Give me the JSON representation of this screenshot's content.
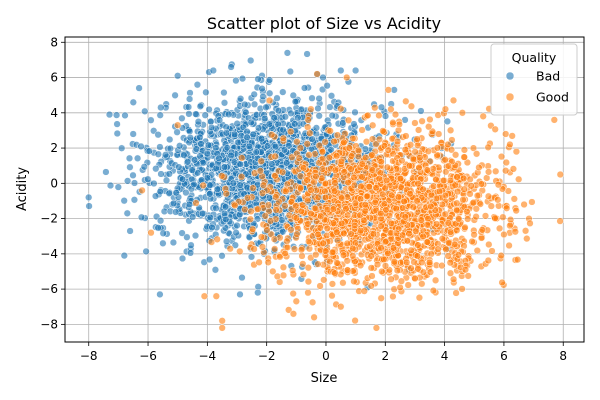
{
  "chart_data": {
    "type": "scatter",
    "title": "Scatter plot of Size vs Acidity",
    "xlabel": "Size",
    "ylabel": "Acidity",
    "xlim": [
      -8.8,
      8.7
    ],
    "ylim": [
      -9.0,
      8.3
    ],
    "xticks": [
      -8,
      -6,
      -4,
      -2,
      0,
      2,
      4,
      6,
      8
    ],
    "yticks": [
      -8,
      -6,
      -4,
      -2,
      0,
      2,
      4,
      6,
      8
    ],
    "grid": true,
    "legend": {
      "title": "Quality",
      "placement": "top-right",
      "entries": [
        "Bad",
        "Good"
      ]
    },
    "series": [
      {
        "name": "Bad",
        "color": "#1f77b4",
        "center": [
          -1.9,
          0.7
        ],
        "spread": [
          1.9,
          2.0
        ],
        "count": 2000,
        "points": [
          [
            -8.0,
            -0.8
          ],
          [
            -7.3,
            3.9
          ],
          [
            -6.8,
            -4.1
          ],
          [
            -6.7,
            -1.7
          ],
          [
            -6.5,
            2.8
          ],
          [
            -6.3,
            5.4
          ],
          [
            -5.6,
            -6.3
          ],
          [
            -5.0,
            6.1
          ],
          [
            -3.8,
            6.4
          ],
          [
            -3.2,
            6.6
          ],
          [
            -1.3,
            7.4
          ],
          [
            -0.1,
            6.0
          ],
          [
            0.5,
            6.4
          ],
          [
            1.0,
            6.4
          ],
          [
            2.3,
            5.3
          ],
          [
            3.2,
            4.1
          ],
          [
            4.1,
            -3.7
          ],
          [
            3.6,
            -2.6
          ],
          [
            2.8,
            -4.9
          ],
          [
            -2.9,
            -6.3
          ],
          [
            -2.3,
            -6.2
          ],
          [
            1.4,
            -5.9
          ],
          [
            2.2,
            4.5
          ],
          [
            3.9,
            2.0
          ],
          [
            -5.5,
            -3.4
          ]
        ]
      },
      {
        "name": "Good",
        "color": "#ff7f0e",
        "center": [
          1.9,
          -1.3
        ],
        "spread": [
          1.9,
          2.0
        ],
        "count": 2000,
        "points": [
          [
            7.9,
            0.5
          ],
          [
            7.7,
            3.6
          ],
          [
            6.2,
            2.2
          ],
          [
            6.2,
            -2.4
          ],
          [
            6.0,
            -2.9
          ],
          [
            5.3,
            3.8
          ],
          [
            4.7,
            -4.9
          ],
          [
            4.2,
            -5.1
          ],
          [
            1.7,
            -8.2
          ],
          [
            0.5,
            -7.0
          ],
          [
            -0.4,
            -7.6
          ],
          [
            -1.1,
            -7.4
          ],
          [
            -3.5,
            -8.2
          ],
          [
            -3.5,
            -7.8
          ],
          [
            -4.1,
            -6.4
          ],
          [
            -3.7,
            -6.4
          ],
          [
            -0.3,
            6.2
          ],
          [
            0.7,
            6.0
          ],
          [
            2.1,
            5.3
          ],
          [
            4.6,
            4.0
          ],
          [
            -6.2,
            -0.4
          ],
          [
            -5.9,
            -2.8
          ],
          [
            -5.0,
            3.3
          ],
          [
            3.0,
            -5.4
          ],
          [
            -1.9,
            4.7
          ]
        ]
      }
    ]
  }
}
